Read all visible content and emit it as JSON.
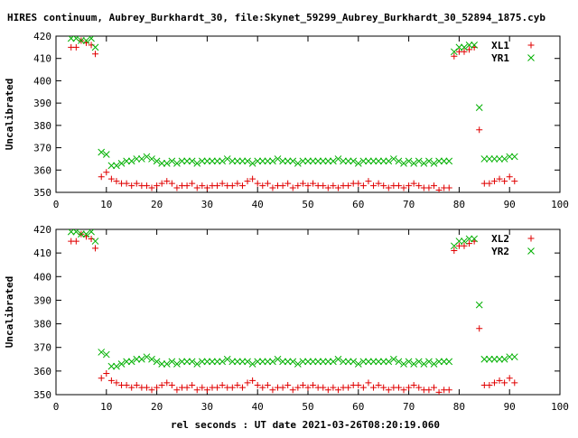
{
  "title": "HIRES continuum, Aubrey_Burkhardt_30, file:Skynet_59299_Aubrey_Burkhardt_30_52894_1875.cyb",
  "xlabel": "rel seconds : UT date 2021-03-26T08:20:19.060",
  "colors": {
    "red": "#e00000",
    "green": "#00b000"
  },
  "chart_data": [
    {
      "type": "scatter",
      "ylabel": "Uncalibrated",
      "xlim": [
        0,
        100
      ],
      "ylim": [
        350,
        420
      ],
      "xticks": [
        0,
        10,
        20,
        30,
        40,
        50,
        60,
        70,
        80,
        90,
        100
      ],
      "yticks": [
        350,
        360,
        370,
        380,
        390,
        400,
        410,
        420
      ],
      "legend_position": "top-right",
      "series": [
        {
          "name": "XL1",
          "marker": "plus",
          "color": "#e00000",
          "x": [
            3,
            4,
            5,
            6,
            7,
            7.8,
            9,
            10,
            11,
            12,
            13,
            14,
            15,
            16,
            17,
            18,
            19,
            20,
            21,
            22,
            23,
            24,
            25,
            26,
            27,
            28,
            29,
            30,
            31,
            32,
            33,
            34,
            35,
            36,
            37,
            38,
            39,
            40,
            41,
            42,
            43,
            44,
            45,
            46,
            47,
            48,
            49,
            50,
            51,
            52,
            53,
            54,
            55,
            56,
            57,
            58,
            59,
            60,
            61,
            62,
            63,
            64,
            65,
            66,
            67,
            68,
            69,
            70,
            71,
            72,
            73,
            74,
            75,
            76,
            77,
            78,
            79,
            80,
            81,
            82,
            83,
            84,
            85,
            86,
            87,
            88,
            89,
            90,
            91
          ],
          "y": [
            415,
            415,
            418,
            417,
            416,
            412,
            357,
            359,
            356,
            355,
            354,
            354,
            353,
            354,
            353,
            353,
            352,
            353,
            354,
            355,
            354,
            352,
            353,
            353,
            354,
            352,
            353,
            352,
            353,
            353,
            354,
            353,
            353,
            354,
            353,
            355,
            356,
            354,
            353,
            354,
            352,
            353,
            353,
            354,
            352,
            353,
            354,
            353,
            354,
            353,
            353,
            352,
            353,
            352,
            353,
            353,
            354,
            354,
            353,
            355,
            353,
            354,
            353,
            352,
            353,
            353,
            352,
            353,
            354,
            353,
            352,
            352,
            353,
            351,
            352,
            352,
            411,
            413,
            413,
            414,
            415,
            378,
            354,
            354,
            355,
            356,
            355,
            357,
            355
          ]
        },
        {
          "name": "YR1",
          "marker": "cross",
          "color": "#00b000",
          "x": [
            3,
            4,
            5,
            6,
            7,
            7.8,
            9,
            10,
            11,
            12,
            13,
            14,
            15,
            16,
            17,
            18,
            19,
            20,
            21,
            22,
            23,
            24,
            25,
            26,
            27,
            28,
            29,
            30,
            31,
            32,
            33,
            34,
            35,
            36,
            37,
            38,
            39,
            40,
            41,
            42,
            43,
            44,
            45,
            46,
            47,
            48,
            49,
            50,
            51,
            52,
            53,
            54,
            55,
            56,
            57,
            58,
            59,
            60,
            61,
            62,
            63,
            64,
            65,
            66,
            67,
            68,
            69,
            70,
            71,
            72,
            73,
            74,
            75,
            76,
            77,
            78,
            79,
            80,
            81,
            82,
            83,
            84,
            85,
            86,
            87,
            88,
            89,
            90,
            91
          ],
          "y": [
            419,
            419,
            418,
            418,
            419,
            415,
            368,
            367,
            362,
            362,
            363,
            364,
            364,
            365,
            365,
            366,
            365,
            364,
            363,
            363,
            364,
            363,
            364,
            364,
            364,
            363,
            364,
            364,
            364,
            364,
            364,
            365,
            364,
            364,
            364,
            364,
            363,
            364,
            364,
            364,
            364,
            365,
            364,
            364,
            364,
            363,
            364,
            364,
            364,
            364,
            364,
            364,
            364,
            365,
            364,
            364,
            364,
            363,
            364,
            364,
            364,
            364,
            364,
            364,
            365,
            364,
            363,
            364,
            363,
            364,
            363,
            364,
            363,
            364,
            364,
            364,
            413,
            415,
            415,
            416,
            416,
            388,
            365,
            365,
            365,
            365,
            365,
            366,
            366
          ]
        }
      ]
    },
    {
      "type": "scatter",
      "ylabel": "Uncalibrated",
      "xlim": [
        0,
        100
      ],
      "ylim": [
        350,
        420
      ],
      "xticks": [
        0,
        10,
        20,
        30,
        40,
        50,
        60,
        70,
        80,
        90,
        100
      ],
      "yticks": [
        350,
        360,
        370,
        380,
        390,
        400,
        410,
        420
      ],
      "legend_position": "top-right",
      "series": [
        {
          "name": "XL2",
          "marker": "plus",
          "color": "#e00000",
          "x": [
            3,
            4,
            5,
            6,
            7,
            7.8,
            9,
            10,
            11,
            12,
            13,
            14,
            15,
            16,
            17,
            18,
            19,
            20,
            21,
            22,
            23,
            24,
            25,
            26,
            27,
            28,
            29,
            30,
            31,
            32,
            33,
            34,
            35,
            36,
            37,
            38,
            39,
            40,
            41,
            42,
            43,
            44,
            45,
            46,
            47,
            48,
            49,
            50,
            51,
            52,
            53,
            54,
            55,
            56,
            57,
            58,
            59,
            60,
            61,
            62,
            63,
            64,
            65,
            66,
            67,
            68,
            69,
            70,
            71,
            72,
            73,
            74,
            75,
            76,
            77,
            78,
            79,
            80,
            81,
            82,
            83,
            84,
            85,
            86,
            87,
            88,
            89,
            90,
            91
          ],
          "y": [
            415,
            415,
            418,
            417,
            416,
            412,
            357,
            359,
            356,
            355,
            354,
            354,
            353,
            354,
            353,
            353,
            352,
            353,
            354,
            355,
            354,
            352,
            353,
            353,
            354,
            352,
            353,
            352,
            353,
            353,
            354,
            353,
            353,
            354,
            353,
            355,
            356,
            354,
            353,
            354,
            352,
            353,
            353,
            354,
            352,
            353,
            354,
            353,
            354,
            353,
            353,
            352,
            353,
            352,
            353,
            353,
            354,
            354,
            353,
            355,
            353,
            354,
            353,
            352,
            353,
            353,
            352,
            353,
            354,
            353,
            352,
            352,
            353,
            351,
            352,
            352,
            411,
            413,
            413,
            414,
            415,
            378,
            354,
            354,
            355,
            356,
            355,
            357,
            355
          ]
        },
        {
          "name": "YR2",
          "marker": "cross",
          "color": "#00b000",
          "x": [
            3,
            4,
            5,
            6,
            7,
            7.8,
            9,
            10,
            11,
            12,
            13,
            14,
            15,
            16,
            17,
            18,
            19,
            20,
            21,
            22,
            23,
            24,
            25,
            26,
            27,
            28,
            29,
            30,
            31,
            32,
            33,
            34,
            35,
            36,
            37,
            38,
            39,
            40,
            41,
            42,
            43,
            44,
            45,
            46,
            47,
            48,
            49,
            50,
            51,
            52,
            53,
            54,
            55,
            56,
            57,
            58,
            59,
            60,
            61,
            62,
            63,
            64,
            65,
            66,
            67,
            68,
            69,
            70,
            71,
            72,
            73,
            74,
            75,
            76,
            77,
            78,
            79,
            80,
            81,
            82,
            83,
            84,
            85,
            86,
            87,
            88,
            89,
            90,
            91
          ],
          "y": [
            419,
            419,
            418,
            418,
            419,
            415,
            368,
            367,
            362,
            362,
            363,
            364,
            364,
            365,
            365,
            366,
            365,
            364,
            363,
            363,
            364,
            363,
            364,
            364,
            364,
            363,
            364,
            364,
            364,
            364,
            364,
            365,
            364,
            364,
            364,
            364,
            363,
            364,
            364,
            364,
            364,
            365,
            364,
            364,
            364,
            363,
            364,
            364,
            364,
            364,
            364,
            364,
            364,
            365,
            364,
            364,
            364,
            363,
            364,
            364,
            364,
            364,
            364,
            364,
            365,
            364,
            363,
            364,
            363,
            364,
            363,
            364,
            363,
            364,
            364,
            364,
            413,
            415,
            415,
            416,
            416,
            388,
            365,
            365,
            365,
            365,
            365,
            366,
            366
          ]
        }
      ]
    }
  ]
}
